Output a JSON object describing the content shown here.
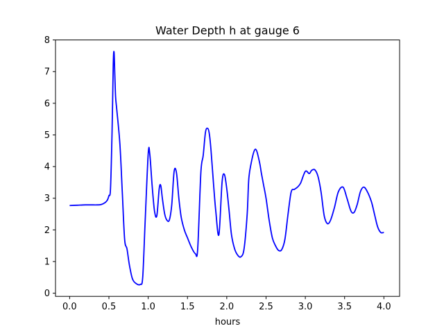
{
  "chart_data": {
    "type": "line",
    "title": "Water Depth h at gauge 6",
    "xlabel": "hours",
    "ylabel": "",
    "xlim": [
      -0.18,
      4.2
    ],
    "ylim": [
      -0.1,
      8.0
    ],
    "grid": false,
    "legend": "none",
    "xticks": [
      0.0,
      0.5,
      1.0,
      1.5,
      2.0,
      2.5,
      3.0,
      3.5,
      4.0
    ],
    "xtick_labels": [
      "0.0",
      "0.5",
      "1.0",
      "1.5",
      "2.0",
      "2.5",
      "3.0",
      "3.5",
      "4.0"
    ],
    "yticks": [
      0,
      1,
      2,
      3,
      4,
      5,
      6,
      7,
      8
    ],
    "ytick_labels": [
      "0",
      "1",
      "2",
      "3",
      "4",
      "5",
      "6",
      "7",
      "8"
    ],
    "series": [
      {
        "color": "#0000ff",
        "x": [
          0.0,
          0.1,
          0.2,
          0.3,
          0.35,
          0.4,
          0.45,
          0.48,
          0.5,
          0.52,
          0.54,
          0.555,
          0.565,
          0.575,
          0.585,
          0.6,
          0.64,
          0.67,
          0.7,
          0.73,
          0.76,
          0.8,
          0.85,
          0.9,
          0.93,
          0.96,
          1.0,
          1.02,
          1.05,
          1.08,
          1.11,
          1.14,
          1.16,
          1.18,
          1.21,
          1.24,
          1.27,
          1.3,
          1.33,
          1.36,
          1.39,
          1.42,
          1.46,
          1.5,
          1.55,
          1.6,
          1.63,
          1.67,
          1.7,
          1.73,
          1.76,
          1.78,
          1.8,
          1.83,
          1.86,
          1.9,
          1.94,
          1.97,
          2.0,
          2.03,
          2.06,
          2.1,
          2.14,
          2.18,
          2.22,
          2.26,
          2.28,
          2.31,
          2.35,
          2.38,
          2.42,
          2.44,
          2.47,
          2.5,
          2.54,
          2.58,
          2.62,
          2.66,
          2.7,
          2.74,
          2.78,
          2.82,
          2.86,
          2.9,
          2.94,
          3.0,
          3.05,
          3.08,
          3.12,
          3.16,
          3.2,
          3.24,
          3.28,
          3.32,
          3.37,
          3.42,
          3.48,
          3.53,
          3.58,
          3.62,
          3.66,
          3.7,
          3.74,
          3.78,
          3.84,
          3.88,
          3.92,
          3.96,
          4.0
        ],
        "y": [
          2.77,
          2.78,
          2.79,
          2.79,
          2.79,
          2.8,
          2.86,
          2.94,
          3.08,
          3.3,
          5.1,
          7.2,
          7.62,
          6.9,
          6.2,
          5.8,
          4.7,
          3.2,
          1.7,
          1.4,
          0.9,
          0.45,
          0.3,
          0.28,
          0.5,
          2.2,
          4.4,
          4.4,
          3.4,
          2.6,
          2.45,
          3.3,
          3.4,
          3.0,
          2.5,
          2.3,
          2.32,
          2.8,
          3.85,
          3.8,
          3.0,
          2.4,
          2.0,
          1.75,
          1.45,
          1.25,
          1.4,
          3.8,
          4.35,
          5.1,
          5.2,
          5.0,
          4.5,
          3.5,
          2.6,
          1.85,
          3.5,
          3.75,
          3.3,
          2.6,
          1.85,
          1.4,
          1.2,
          1.15,
          1.4,
          2.5,
          3.6,
          4.1,
          4.5,
          4.5,
          4.1,
          3.8,
          3.4,
          3.0,
          2.3,
          1.75,
          1.5,
          1.35,
          1.38,
          1.7,
          2.5,
          3.2,
          3.28,
          3.35,
          3.48,
          3.85,
          3.78,
          3.88,
          3.9,
          3.7,
          3.2,
          2.45,
          2.2,
          2.3,
          2.7,
          3.2,
          3.35,
          3.0,
          2.6,
          2.55,
          2.8,
          3.2,
          3.35,
          3.25,
          2.9,
          2.5,
          2.1,
          1.92,
          1.92
        ]
      }
    ]
  }
}
